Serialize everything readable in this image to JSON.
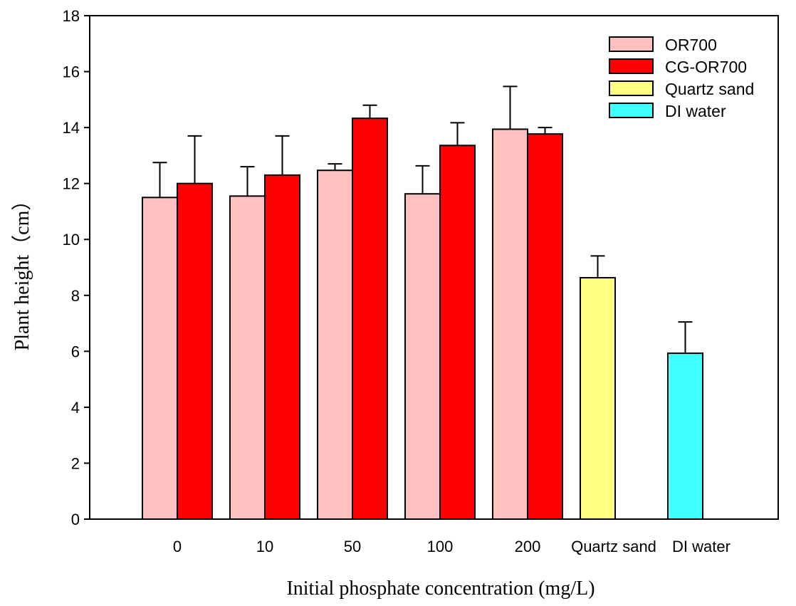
{
  "chart_data": {
    "type": "bar",
    "title": "",
    "xlabel": "Initial phosphate concentration (mg/L)",
    "ylabel": "Plant height（cm）",
    "ylim": [
      0,
      18
    ],
    "yticks": [
      "0",
      "2",
      "4",
      "6",
      "8",
      "10",
      "12",
      "14",
      "16",
      "18"
    ],
    "categories": [
      "0",
      "10",
      "50",
      "100",
      "200",
      "Quartz sand",
      "DI water"
    ],
    "legend_position": "top-right",
    "series": [
      {
        "name": "OR700",
        "color": "#FFC0C0",
        "slot": 0,
        "values": [
          11.5,
          11.55,
          12.47,
          11.63,
          13.94,
          null,
          null
        ],
        "errors": [
          1.25,
          1.05,
          0.23,
          1.0,
          1.53,
          null,
          null
        ]
      },
      {
        "name": "CG-OR700",
        "color": "#FF0000",
        "slot": 1,
        "values": [
          12.0,
          12.3,
          14.33,
          13.36,
          13.77,
          null,
          null
        ],
        "errors": [
          1.7,
          1.4,
          0.47,
          0.81,
          0.23,
          null,
          null
        ]
      },
      {
        "name": "Quartz sand",
        "color": "#FFFF80",
        "slot": 0,
        "values": [
          null,
          null,
          null,
          null,
          null,
          8.63,
          null
        ],
        "errors": [
          null,
          null,
          null,
          null,
          null,
          0.78,
          null
        ]
      },
      {
        "name": "DI water",
        "color": "#40FFFF",
        "slot": 0,
        "values": [
          null,
          null,
          null,
          null,
          null,
          null,
          5.93
        ],
        "errors": [
          null,
          null,
          null,
          null,
          null,
          null,
          1.12
        ]
      }
    ]
  }
}
